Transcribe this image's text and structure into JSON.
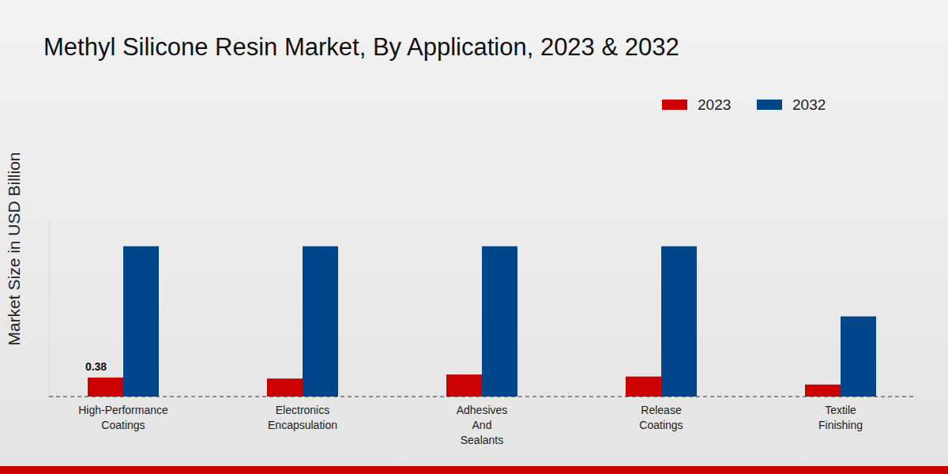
{
  "chart_data": {
    "type": "bar",
    "title": "Methyl Silicone Resin Market, By Application, 2023 & 2032",
    "y_label": "Market Size in USD Billion",
    "categories": [
      "High-Performance\nCoatings",
      "Electronics\nEncapsulation",
      "Adhesives\nAnd\nSealants",
      "Release\nCoatings",
      "Textile\nFinishing"
    ],
    "series": [
      {
        "name": "2023",
        "color": "#cc0000",
        "values": [
          0.38,
          0.36,
          0.44,
          0.4,
          0.24
        ],
        "value_labels": [
          "0.38",
          null,
          null,
          null,
          null
        ],
        "data_labels": true
      },
      {
        "name": "2032",
        "color": "#00468b",
        "values": [
          3.0,
          3.0,
          3.0,
          3.0,
          1.6
        ]
      }
    ],
    "ylim": [
      0,
      3.5
    ],
    "tick_labels": "x",
    "grid": false,
    "legend": "top-right"
  }
}
